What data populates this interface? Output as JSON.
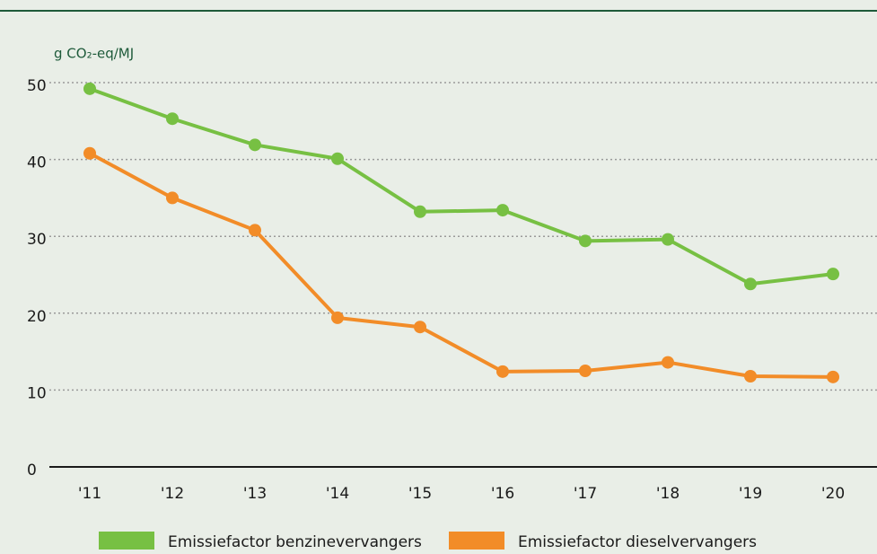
{
  "chart_data": {
    "type": "line",
    "y_label": "g CO₂-eq/MJ",
    "categories": [
      "'11",
      "'12",
      "'13",
      "'14",
      "'15",
      "'16",
      "'17",
      "'18",
      "'19",
      "'20"
    ],
    "series": [
      {
        "name": "Emissiefactor benzinevervangers",
        "color": "#77c043",
        "values": [
          49.2,
          45.3,
          41.9,
          40.1,
          33.2,
          33.4,
          29.4,
          29.6,
          23.8,
          25.1
        ]
      },
      {
        "name": "Emissiefactor dieselvervangers",
        "color": "#f28c28",
        "values": [
          40.8,
          35,
          30.8,
          19.4,
          18.2,
          12.4,
          12.5,
          13.6,
          11.8,
          11.7
        ]
      }
    ],
    "ylim": [
      0,
      50
    ],
    "yticks": [
      0,
      10,
      20,
      30,
      40,
      50
    ],
    "grid": true
  }
}
